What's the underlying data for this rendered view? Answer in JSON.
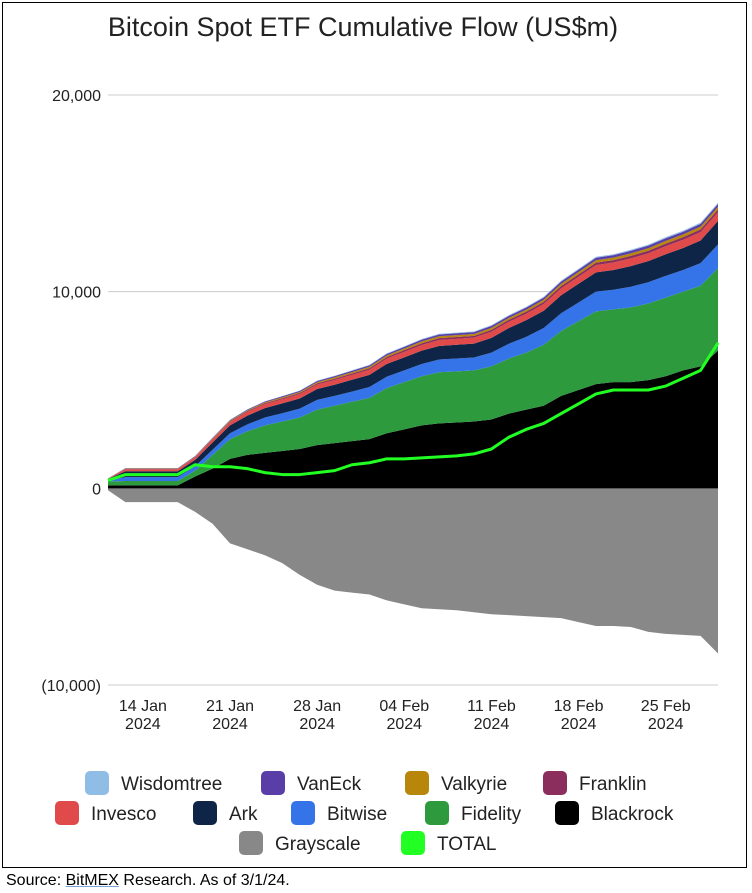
{
  "chart_data": {
    "type": "area",
    "title": "Bitcoin Spot ETF Cumulative Flow (US$m)",
    "xlabel": "",
    "ylabel": "",
    "ylim": [
      -10000,
      20000
    ],
    "y_ticks": [
      {
        "value": 20000,
        "label": "20,000"
      },
      {
        "value": 10000,
        "label": "10,000"
      },
      {
        "value": 0,
        "label": "0"
      },
      {
        "value": -10000,
        "label": "(10,000)"
      }
    ],
    "x_ticks": [
      {
        "index": 2,
        "line1": "14 Jan",
        "line2": "2024"
      },
      {
        "index": 7,
        "line1": "21 Jan",
        "line2": "2024"
      },
      {
        "index": 12,
        "line1": "28 Jan",
        "line2": "2024"
      },
      {
        "index": 17,
        "line1": "04 Feb",
        "line2": "2024"
      },
      {
        "index": 22,
        "line1": "11 Feb",
        "line2": "2024"
      },
      {
        "index": 27,
        "line1": "18 Feb",
        "line2": "2024"
      },
      {
        "index": 32,
        "line1": "25 Feb",
        "line2": "2024"
      }
    ],
    "x_count": 36,
    "grid": true,
    "legend_position": "bottom",
    "positive_stack_order": [
      "Blackrock",
      "Fidelity",
      "Bitwise",
      "Ark",
      "Invesco",
      "Franklin",
      "Valkyrie",
      "VanEck",
      "Wisdomtree"
    ],
    "series": [
      {
        "name": "Blackrock",
        "color": "#000000",
        "values": [
          150,
          150,
          150,
          150,
          150,
          600,
          1000,
          1500,
          1700,
          1800,
          1900,
          2000,
          2200,
          2300,
          2400,
          2500,
          2800,
          3000,
          3200,
          3300,
          3350,
          3400,
          3500,
          3800,
          4000,
          4200,
          4700,
          5000,
          5300,
          5400,
          5400,
          5500,
          5700,
          6000,
          6200,
          7000
        ]
      },
      {
        "name": "Fidelity",
        "color": "#2e9a3e",
        "values": [
          200,
          220,
          220,
          220,
          220,
          300,
          700,
          1000,
          1200,
          1400,
          1500,
          1600,
          1800,
          1900,
          2000,
          2100,
          2300,
          2400,
          2500,
          2600,
          2600,
          2600,
          2700,
          2800,
          2900,
          3100,
          3300,
          3500,
          3700,
          3700,
          3800,
          3900,
          4000,
          4000,
          4100,
          4200
        ]
      },
      {
        "name": "Bitwise",
        "color": "#3474e8",
        "values": [
          50,
          200,
          200,
          200,
          200,
          220,
          260,
          300,
          350,
          400,
          420,
          450,
          500,
          500,
          520,
          550,
          580,
          600,
          620,
          650,
          650,
          650,
          700,
          750,
          800,
          850,
          900,
          950,
          1000,
          1000,
          1050,
          1080,
          1100,
          1100,
          1150,
          1200
        ]
      },
      {
        "name": "Ark",
        "color": "#0f2547",
        "values": [
          80,
          300,
          300,
          300,
          300,
          330,
          370,
          400,
          450,
          480,
          500,
          520,
          550,
          570,
          600,
          620,
          650,
          660,
          680,
          690,
          700,
          710,
          750,
          800,
          850,
          880,
          920,
          950,
          980,
          1000,
          1050,
          1070,
          1100,
          1120,
          1150,
          1200
        ]
      },
      {
        "name": "Invesco",
        "color": "#e04a4a",
        "values": [
          10,
          100,
          100,
          100,
          100,
          120,
          150,
          170,
          190,
          200,
          210,
          220,
          230,
          240,
          250,
          260,
          270,
          280,
          290,
          300,
          300,
          300,
          310,
          320,
          330,
          340,
          350,
          360,
          370,
          380,
          390,
          400,
          410,
          420,
          430,
          440
        ]
      },
      {
        "name": "Franklin",
        "color": "#8b2e5e",
        "values": [
          5,
          20,
          20,
          20,
          20,
          25,
          30,
          35,
          40,
          45,
          50,
          55,
          60,
          65,
          70,
          75,
          80,
          85,
          90,
          95,
          95,
          95,
          100,
          100,
          105,
          110,
          115,
          120,
          125,
          125,
          130,
          130,
          135,
          135,
          140,
          140
        ]
      },
      {
        "name": "Valkyrie",
        "color": "#b8860b",
        "values": [
          5,
          20,
          20,
          20,
          20,
          25,
          30,
          35,
          40,
          45,
          50,
          55,
          60,
          65,
          70,
          75,
          80,
          85,
          90,
          95,
          95,
          95,
          100,
          100,
          105,
          110,
          115,
          120,
          125,
          125,
          130,
          130,
          135,
          135,
          140,
          140
        ]
      },
      {
        "name": "VanEck",
        "color": "#5a3ea8",
        "values": [
          5,
          20,
          20,
          20,
          20,
          25,
          30,
          35,
          40,
          45,
          50,
          55,
          60,
          65,
          70,
          75,
          80,
          85,
          90,
          95,
          95,
          95,
          100,
          100,
          105,
          110,
          115,
          120,
          125,
          125,
          130,
          130,
          135,
          135,
          140,
          140
        ]
      },
      {
        "name": "Wisdomtree",
        "color": "#8fbde6",
        "values": [
          2,
          5,
          5,
          5,
          5,
          6,
          8,
          10,
          12,
          14,
          16,
          18,
          20,
          22,
          24,
          26,
          28,
          30,
          32,
          34,
          34,
          34,
          36,
          38,
          40,
          42,
          44,
          46,
          48,
          50,
          52,
          54,
          56,
          58,
          60,
          62
        ]
      },
      {
        "name": "Grayscale",
        "color": "#888888",
        "values": [
          -100,
          -700,
          -700,
          -700,
          -700,
          -1200,
          -1800,
          -2800,
          -3100,
          -3400,
          -3800,
          -4400,
          -4900,
          -5200,
          -5300,
          -5400,
          -5700,
          -5900,
          -6100,
          -6150,
          -6200,
          -6300,
          -6400,
          -6450,
          -6500,
          -6550,
          -6600,
          -6800,
          -7000,
          -7000,
          -7050,
          -7300,
          -7400,
          -7450,
          -7500,
          -8400
        ]
      },
      {
        "name": "TOTAL",
        "color": "#22ff22",
        "values": [
          400,
          700,
          700,
          700,
          700,
          1200,
          1100,
          1100,
          1000,
          800,
          700,
          700,
          800,
          900,
          1200,
          1300,
          1500,
          1500,
          1550,
          1600,
          1650,
          1750,
          2000,
          2600,
          3000,
          3300,
          3800,
          4300,
          4800,
          5000,
          5000,
          5000,
          5200,
          5600,
          6000,
          7400
        ]
      }
    ],
    "legend": [
      [
        "Wisdomtree",
        "VanEck",
        "Valkyrie",
        "Franklin"
      ],
      [
        "Invesco",
        "Ark",
        "Bitwise",
        "Fidelity",
        "Blackrock"
      ],
      [
        "Grayscale",
        "TOTAL"
      ]
    ]
  },
  "source": {
    "prefix": "Source: ",
    "brand": "BitMEX",
    "suffix": " Research. As of 3/1/24."
  }
}
